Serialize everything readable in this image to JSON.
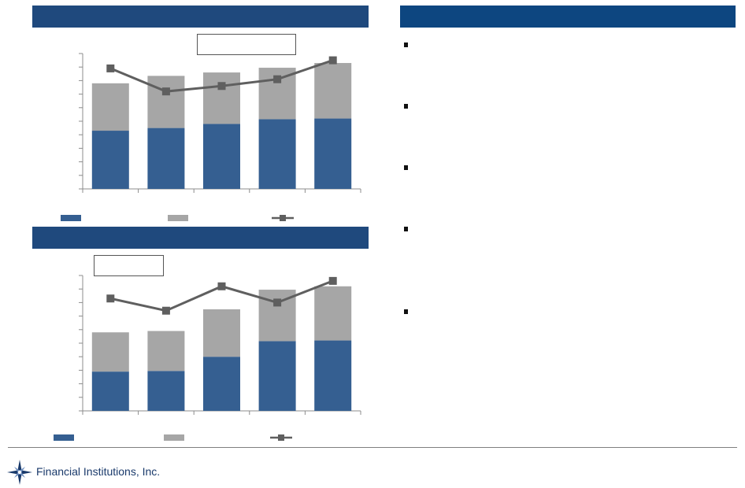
{
  "footer": {
    "company": "Financial Institutions, Inc."
  },
  "colors": {
    "primary_series": "#355f91",
    "secondary_series": "#a6a6a6",
    "line_series": "#5f5f5f",
    "header_blue": "#1f497d"
  },
  "chart_data": [
    {
      "type": "bar",
      "stacked": true,
      "categories": [
        "",
        "",
        "",
        "",
        ""
      ],
      "series": [
        {
          "type": "bar",
          "values": [
            4.3,
            4.5,
            4.8,
            5.15,
            5.2
          ]
        },
        {
          "type": "bar",
          "values": [
            3.5,
            3.85,
            3.8,
            3.8,
            4.1
          ]
        },
        {
          "type": "line",
          "values": [
            8.9,
            7.2,
            7.6,
            8.1,
            9.5
          ]
        }
      ],
      "ylim": [
        0,
        10
      ],
      "ytick_count": 11,
      "legend": "bottom",
      "grid": false
    },
    {
      "type": "bar",
      "stacked": true,
      "categories": [
        "",
        "",
        "",
        "",
        ""
      ],
      "series": [
        {
          "type": "bar",
          "values": [
            2.9,
            2.95,
            4.0,
            5.15,
            5.2
          ]
        },
        {
          "type": "bar",
          "values": [
            2.9,
            2.95,
            3.5,
            3.8,
            4.0
          ]
        },
        {
          "type": "line",
          "values": [
            8.3,
            7.4,
            9.2,
            8.0,
            9.6
          ]
        }
      ],
      "ylim": [
        0,
        10
      ],
      "ytick_count": 11,
      "legend": "bottom",
      "grid": false
    }
  ],
  "bullets": [
    {
      "icon": "square-bullet-icon"
    },
    {
      "icon": "square-bullet-icon"
    },
    {
      "icon": "square-bullet-icon"
    },
    {
      "icon": "square-bullet-icon"
    },
    {
      "icon": "square-bullet-icon"
    }
  ]
}
